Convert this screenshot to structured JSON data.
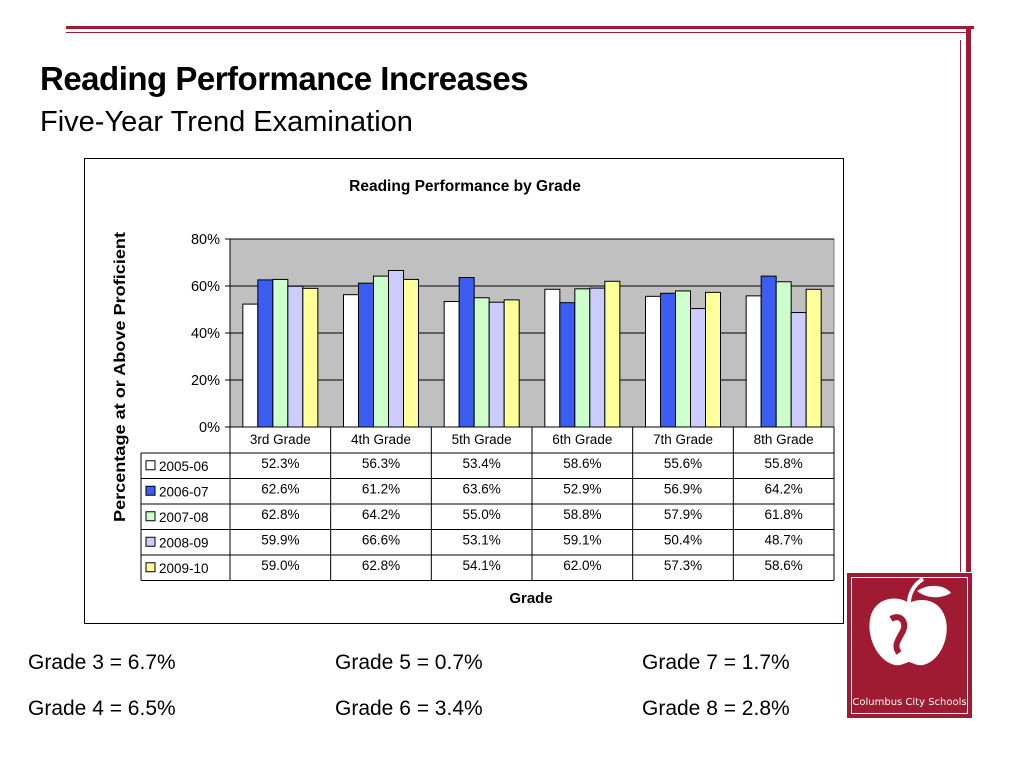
{
  "slide": {
    "title": "Reading Performance Increases",
    "subtitle": "Five-Year Trend Examination"
  },
  "colors": {
    "accent": "#9e1b32",
    "plot_background": "#c0c0c0"
  },
  "chart_data": {
    "type": "bar",
    "title": "Reading Performance by Grade",
    "xlabel": "Grade",
    "ylabel": "Percentage at or Above Proficient",
    "ylim": [
      0,
      80
    ],
    "yticks": [
      "0%",
      "20%",
      "40%",
      "60%",
      "80%"
    ],
    "grid": true,
    "legend": "data-table",
    "categories": [
      "3rd Grade",
      "4th Grade",
      "5th Grade",
      "6th Grade",
      "7th Grade",
      "8th Grade"
    ],
    "series": [
      {
        "name": "2005-06",
        "color": "#ffffff",
        "values": [
          52.3,
          56.3,
          53.4,
          58.6,
          55.6,
          55.8
        ],
        "labels": [
          "52.3%",
          "56.3%",
          "53.4%",
          "58.6%",
          "55.6%",
          "55.8%"
        ]
      },
      {
        "name": "2006-07",
        "color": "#3b5ef0",
        "values": [
          62.6,
          61.2,
          63.6,
          52.9,
          56.9,
          64.2
        ],
        "labels": [
          "62.6%",
          "61.2%",
          "63.6%",
          "52.9%",
          "56.9%",
          "64.2%"
        ]
      },
      {
        "name": "2007-08",
        "color": "#ccffcc",
        "values": [
          62.8,
          64.2,
          55.0,
          58.8,
          57.9,
          61.8
        ],
        "labels": [
          "62.8%",
          "64.2%",
          "55.0%",
          "58.8%",
          "57.9%",
          "61.8%"
        ]
      },
      {
        "name": "2008-09",
        "color": "#ccccff",
        "values": [
          59.9,
          66.6,
          53.1,
          59.1,
          50.4,
          48.7
        ],
        "labels": [
          "59.9%",
          "66.6%",
          "53.1%",
          "59.1%",
          "50.4%",
          "48.7%"
        ]
      },
      {
        "name": "2009-10",
        "color": "#ffff99",
        "values": [
          59.0,
          62.8,
          54.1,
          62.0,
          57.3,
          58.6
        ],
        "labels": [
          "59.0%",
          "62.8%",
          "54.1%",
          "62.0%",
          "57.3%",
          "58.6%"
        ]
      }
    ]
  },
  "footnotes": [
    "Grade 3 = 6.7%",
    "Grade 5 = 0.7%",
    "Grade 7 = 1.7%",
    "Grade 4 = 6.5%",
    "Grade 6 = 3.4%",
    "Grade 8 = 2.8%"
  ],
  "logo": {
    "text": "Columbus City Schools",
    "icon": "apple-icon"
  }
}
